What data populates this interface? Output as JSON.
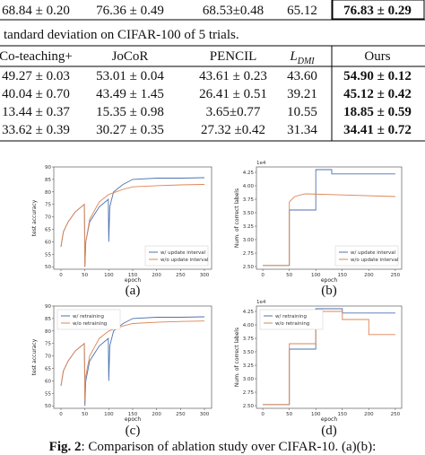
{
  "top_row": [
    "68.84 ± 0.20",
    "76.36 ± 0.49",
    "68.53±0.48",
    "65.12",
    "76.83 ± 0.29"
  ],
  "table_caption": "tandard deviation on CIFAR-100 of 5 trials.",
  "table": {
    "header": [
      "Co-teaching+",
      "JoCoR",
      "PENCIL",
      {
        "symbol": "L",
        "subscript": "DMI"
      },
      "Ours"
    ],
    "rows": [
      [
        "49.27 ± 0.03",
        "53.01 ± 0.04",
        "43.61 ± 0.23",
        "43.60",
        "54.90 ± 0.12"
      ],
      [
        "40.04 ± 0.70",
        "43.49 ± 1.45",
        "26.41 ± 0.51",
        "39.21",
        "45.12 ± 0.42"
      ],
      [
        "13.44 ± 0.37",
        "15.35 ± 0.98",
        "3.65±0.77",
        "10.55",
        "18.85 ± 0.59"
      ],
      [
        "33.62 ± 0.39",
        "30.27 ± 0.35",
        "27.32 ±0.42",
        "31.34",
        "34.41 ± 0.72"
      ]
    ]
  },
  "figures": [
    {
      "type": "line",
      "caption": "(a)",
      "xlabel": "epoch",
      "ylabel": "test accuracy",
      "legend": "lower right",
      "xlim": [
        -15,
        315
      ],
      "ylim": [
        49,
        90
      ],
      "xticks": [
        0,
        50,
        100,
        150,
        200,
        250,
        300
      ],
      "yticks": [
        50,
        55,
        60,
        65,
        70,
        75,
        80,
        85,
        90
      ],
      "series": [
        {
          "name": "w/ update interval",
          "color": "#4c72b0",
          "x": [
            0,
            5,
            15,
            30,
            49,
            50,
            52,
            60,
            80,
            99,
            100,
            102,
            110,
            130,
            150,
            200,
            250,
            300
          ],
          "values": [
            58,
            64,
            68,
            72,
            75,
            50,
            60,
            68,
            74,
            77,
            60,
            74,
            80,
            83,
            85,
            85.5,
            85.5,
            85.7
          ]
        },
        {
          "name": "w/o update interval",
          "color": "#dd8452",
          "x": [
            0,
            5,
            15,
            30,
            49,
            50,
            52,
            60,
            80,
            100,
            130,
            150,
            200,
            250,
            300
          ],
          "values": [
            58,
            64,
            68,
            72,
            75,
            50,
            60,
            69,
            76,
            79,
            81,
            82,
            82.5,
            82.8,
            83
          ]
        }
      ]
    },
    {
      "type": "line",
      "caption": "(b)",
      "xlabel": "epoch",
      "ylabel": "Num. of correct labels",
      "offset_label": "1e4",
      "legend": "lower right",
      "xlim": [
        -12,
        262
      ],
      "ylim": [
        2.45,
        4.35
      ],
      "xticks": [
        0,
        50,
        100,
        150,
        200,
        250
      ],
      "yticks": [
        {
          "value": 2.5,
          "label": "2.50"
        },
        2.75,
        {
          "value": 3,
          "label": "3.00"
        },
        3.25,
        {
          "value": 3.5,
          "label": "3.50"
        },
        3.75,
        {
          "value": 4,
          "label": "4.00"
        },
        4.25
      ],
      "series": [
        {
          "name": "w/ update interval",
          "color": "#4c72b0",
          "x": [
            0,
            50,
            50,
            100,
            100,
            130,
            130,
            250
          ],
          "values": [
            2.52,
            2.52,
            3.55,
            3.55,
            4.3,
            4.3,
            4.22,
            4.22
          ]
        },
        {
          "name": "w/o update interval",
          "color": "#dd8452",
          "x": [
            0,
            50,
            50,
            60,
            80,
            150,
            250
          ],
          "values": [
            2.52,
            2.52,
            3.7,
            3.8,
            3.85,
            3.83,
            3.8
          ]
        }
      ]
    },
    {
      "type": "line",
      "caption": "(c)",
      "xlabel": "epoch",
      "ylabel": "test accuracy",
      "legend": "upper left",
      "xlim": [
        -15,
        315
      ],
      "ylim": [
        49,
        90
      ],
      "xticks": [
        0,
        50,
        100,
        150,
        200,
        250,
        300
      ],
      "yticks": [
        50,
        55,
        60,
        65,
        70,
        75,
        80,
        85,
        90
      ],
      "series": [
        {
          "name": "w/ retraining",
          "color": "#4c72b0",
          "x": [
            0,
            5,
            15,
            30,
            49,
            50,
            52,
            60,
            80,
            99,
            100,
            102,
            110,
            130,
            150,
            200,
            250,
            300
          ],
          "values": [
            58,
            64,
            68,
            72,
            75,
            50,
            60,
            68,
            74,
            77,
            60,
            74,
            80,
            83,
            85,
            85.5,
            85.5,
            85.7
          ]
        },
        {
          "name": "w/o retraining",
          "color": "#dd8452",
          "x": [
            0,
            5,
            15,
            30,
            49,
            50,
            52,
            60,
            80,
            100,
            130,
            150,
            200,
            250,
            300
          ],
          "values": [
            58,
            64,
            68,
            72,
            75,
            52,
            62,
            70,
            77,
            80,
            82,
            83,
            83.5,
            83.8,
            84
          ]
        }
      ]
    },
    {
      "type": "line",
      "caption": "(d)",
      "xlabel": "epoch",
      "ylabel": "Num. of correct labels",
      "offset_label": "1e4",
      "legend": "upper left",
      "xlim": [
        -12,
        262
      ],
      "ylim": [
        2.45,
        4.35
      ],
      "xticks": [
        0,
        50,
        100,
        150,
        200,
        250
      ],
      "yticks": [
        {
          "value": 2.5,
          "label": "2.50"
        },
        2.75,
        {
          "value": 3,
          "label": "3.00"
        },
        3.25,
        {
          "value": 3.5,
          "label": "3.50"
        },
        3.75,
        {
          "value": 4,
          "label": "4.00"
        },
        4.25
      ],
      "series": [
        {
          "name": "w/ retraining",
          "color": "#4c72b0",
          "x": [
            0,
            50,
            50,
            100,
            100,
            150,
            150,
            250
          ],
          "values": [
            2.52,
            2.52,
            3.55,
            3.55,
            4.3,
            4.3,
            4.22,
            4.22
          ]
        },
        {
          "name": "w/o retraining",
          "color": "#dd8452",
          "x": [
            0,
            50,
            50,
            100,
            100,
            150,
            150,
            200,
            200,
            250
          ],
          "values": [
            2.52,
            2.52,
            3.65,
            3.65,
            4.25,
            4.25,
            4.1,
            4.1,
            3.82,
            3.82
          ]
        }
      ]
    }
  ],
  "figure_caption": {
    "label": "Fig. 2",
    "text": ": Comparison of ablation study over CIFAR-10. (a)(b):"
  }
}
